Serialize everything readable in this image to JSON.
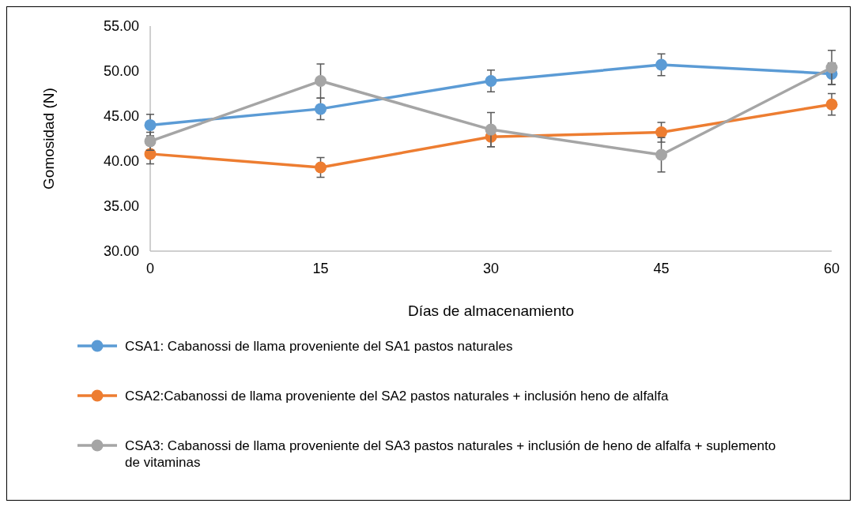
{
  "chart_data": {
    "type": "line",
    "xlabel": "Días de almacenamiento",
    "ylabel": "Gomosidad (N)",
    "x": [
      0,
      15,
      30,
      45,
      60
    ],
    "xlim": [
      0,
      60
    ],
    "xticks": [
      0,
      15,
      30,
      45,
      60
    ],
    "ylim": [
      30,
      55
    ],
    "yticks": [
      {
        "value": 30,
        "label": "30.00"
      },
      {
        "value": 35,
        "label": "35.00"
      },
      {
        "value": 40,
        "label": "40.00"
      },
      {
        "value": 45,
        "label": "45.00"
      },
      {
        "value": 50,
        "label": "50.00"
      },
      {
        "value": 55,
        "label": "55.00"
      }
    ],
    "marker": "circle",
    "legend": "bottom",
    "series": [
      {
        "name": "CSA1: Cabanossi de llama proveniente del SA1 pastos naturales",
        "color": "#5b9bd5",
        "values": [
          44.0,
          45.8,
          48.9,
          50.7,
          49.7
        ],
        "errors": [
          1.2,
          1.2,
          1.2,
          1.2,
          1.2
        ]
      },
      {
        "name": "CSA2:Cabanossi de llama proveniente del SA2 pastos naturales + inclusión heno de alfalfa",
        "color": "#ed7d31",
        "values": [
          40.8,
          39.3,
          42.7,
          43.2,
          46.3
        ],
        "errors": [
          1.1,
          1.1,
          1.1,
          1.1,
          1.2
        ]
      },
      {
        "name": "CSA3: Cabanossi de llama proveniente del SA3 pastos naturales + inclusión de heno de alfalfa + suplemento de vitaminas",
        "color": "#a5a5a5",
        "values": [
          42.2,
          48.9,
          43.5,
          40.7,
          50.4
        ],
        "errors": [
          1.0,
          1.9,
          1.9,
          1.9,
          1.9
        ]
      }
    ]
  }
}
